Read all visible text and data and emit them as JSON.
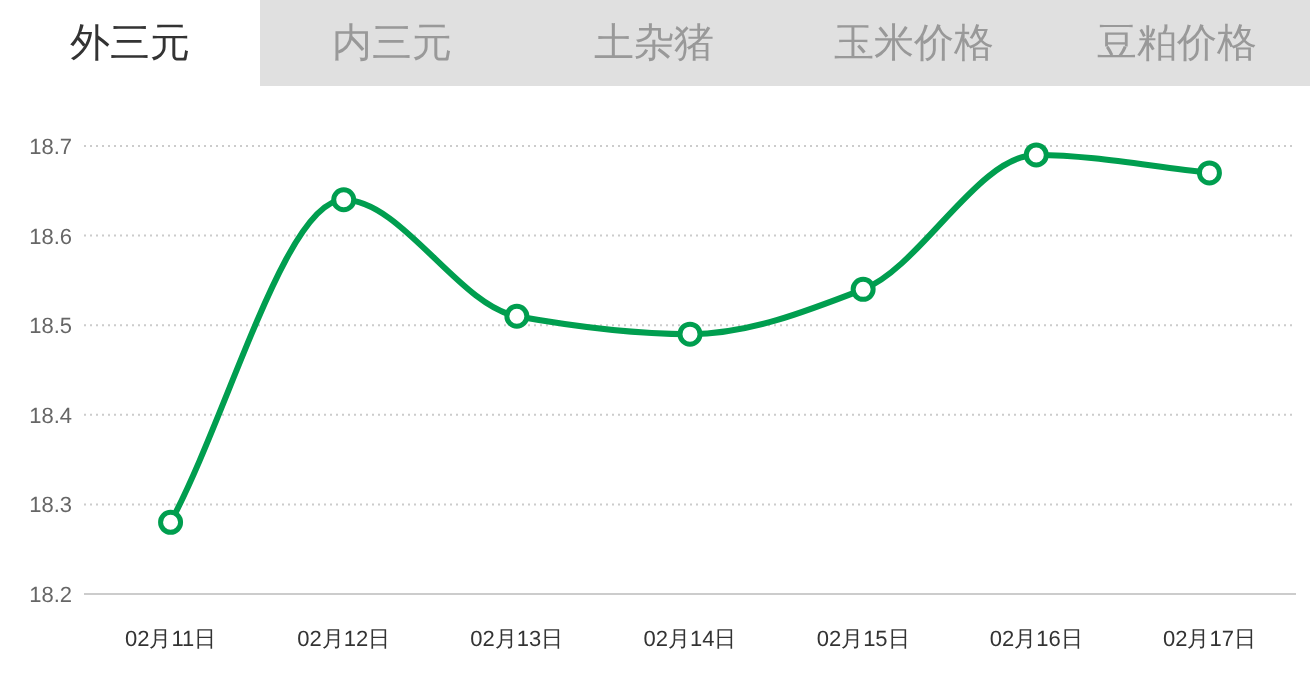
{
  "chart_data": {
    "type": "line",
    "title": "外三元",
    "annotations": [
      "内三元",
      "土杂猪",
      "玉米价格",
      "豆粕价格"
    ],
    "categories": [
      "02月11日",
      "02月12日",
      "02月13日",
      "02月14日",
      "02月15日",
      "02月16日",
      "02月17日"
    ],
    "series": [
      {
        "color": "#009e4f",
        "values": [
          18.28,
          18.64,
          18.51,
          18.49,
          18.54,
          18.69,
          18.67
        ]
      }
    ],
    "ylim": [
      18.2,
      18.7
    ],
    "yticks": [
      18.2,
      18.3,
      18.4,
      18.5,
      18.6,
      18.7
    ],
    "grid": "y",
    "marker": "circle"
  }
}
